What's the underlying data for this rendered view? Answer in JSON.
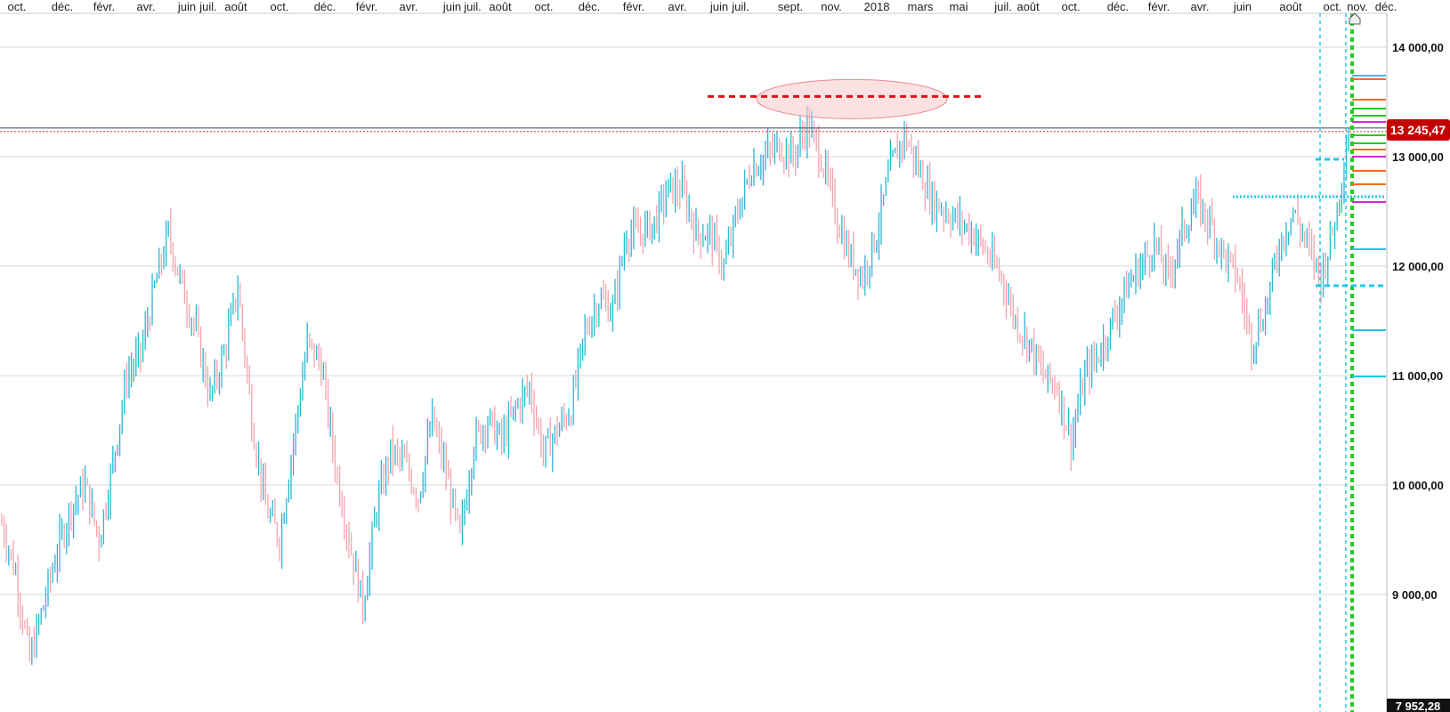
{
  "colors": {
    "up": "#29b6d6",
    "down": "#f5a3ad",
    "grid": "#d8d8d8",
    "current_price_badge": "#c40000",
    "bottom_badge": "#111111",
    "resistance": "#e01010",
    "zone_fill": "#f9c9cc",
    "marker_cyan": "#1fc8e8",
    "marker_green": "#22cc22",
    "marker_orange": "#f07020",
    "marker_magenta": "#dd22dd"
  },
  "toolbar": {
    "home_icon": "home-icon"
  },
  "chart_data": {
    "type": "candlestick",
    "x_tick_labels": [
      "oct.",
      "déc.",
      "févr.",
      "avr.",
      "juin",
      "juil.",
      "août",
      "oct.",
      "déc.",
      "févr.",
      "avr.",
      "juin",
      "juil.",
      "août",
      "oct.",
      "déc.",
      "févr.",
      "avr.",
      "juin",
      "juil.",
      "sept.",
      "nov.",
      "2018",
      "mars",
      "mai",
      "juil.",
      "août",
      "oct.",
      "déc.",
      "févr.",
      "avr.",
      "juin",
      "août",
      "oct.",
      "nov.",
      "déc."
    ],
    "y_tick_labels": [
      "14 000,00",
      "13 000,00",
      "12 000,00",
      "11 000,00",
      "10 000,00",
      "9 000,00"
    ],
    "y_ticks": [
      14000,
      13000,
      12000,
      11000,
      10000,
      9000
    ],
    "ylim": [
      7900,
      14300
    ],
    "current_price": 13245.47,
    "current_price_label": "13 245,47",
    "bottom_value_label": "7 952,28",
    "series": [
      {
        "values": [
          9650,
          9200,
          8400,
          8900,
          9400,
          9800,
          10000,
          9500,
          10200,
          11000,
          11200,
          11800,
          12300,
          11800,
          11400,
          10800,
          11200,
          11800,
          10600,
          9800,
          9500,
          10400,
          11300,
          11100,
          10200,
          9500,
          8900,
          9800,
          10300,
          10200,
          9900,
          10600,
          10100,
          9500,
          10400,
          10600,
          10400,
          10700,
          10900,
          10300,
          10500,
          10700,
          11400,
          11700,
          11600,
          12300,
          12300,
          12400,
          12700,
          12700,
          12300,
          12300,
          12000,
          12500,
          12900,
          13000,
          13100,
          13000,
          13300,
          13000,
          12500,
          12100,
          11900,
          12300,
          12900,
          13200,
          12900,
          12600,
          12500,
          12400,
          12300,
          12100,
          11900,
          11500,
          11300,
          11000,
          10900,
          10400,
          11000,
          11200,
          11500,
          11800,
          12000,
          12200,
          11900,
          12300,
          12600,
          12400,
          12100,
          11900,
          11300,
          11600,
          12200,
          12500,
          12200,
          11900,
          12400,
          13245
        ]
      }
    ],
    "annotations": {
      "resistance_level": 13550
    }
  }
}
